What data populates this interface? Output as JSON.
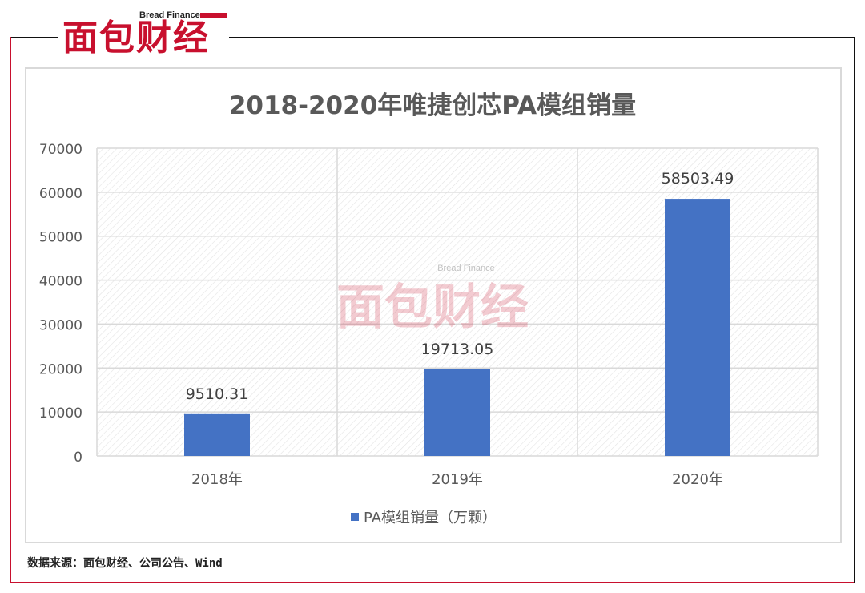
{
  "header": {
    "logo_text": "面包财经",
    "logo_subtext": "Bread Finance"
  },
  "watermark": {
    "text": "面包财经",
    "subtext": "Bread Finance"
  },
  "source_note": "数据来源：面包财经、公司公告、Wind",
  "colors": {
    "bar": "#4472c4",
    "brand_red": "#c8102e",
    "title": "#595959",
    "grid": "#d9d9d9"
  },
  "chart_data": {
    "type": "bar",
    "title": "2018-2020年唯捷创芯PA模组销量",
    "categories": [
      "2018年",
      "2019年",
      "2020年"
    ],
    "series": [
      {
        "name": "PA模组销量（万颗）",
        "values": [
          9510.31,
          19713.05,
          58503.49
        ],
        "labels": [
          "9510.31",
          "19713.05",
          "58503.49"
        ]
      }
    ],
    "xlabel": "",
    "ylabel": "",
    "ylim": [
      0,
      70000
    ],
    "yticks": [
      0,
      10000,
      20000,
      30000,
      40000,
      50000,
      60000,
      70000
    ],
    "grid": true,
    "legend_position": "bottom"
  }
}
